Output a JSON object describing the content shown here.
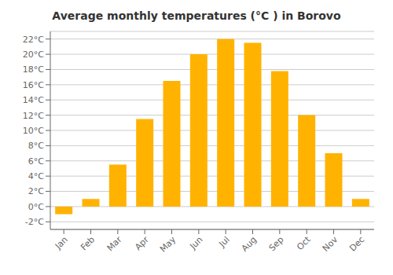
{
  "chart_data": {
    "type": "bar",
    "title": "Average monthly temperatures (°C ) in Borovo",
    "categories": [
      "Jan",
      "Feb",
      "Mar",
      "Apr",
      "May",
      "Jun",
      "Jul",
      "Aug",
      "Sep",
      "Oct",
      "Nov",
      "Dec"
    ],
    "values": [
      -1.0,
      1.0,
      5.5,
      11.5,
      16.5,
      20.0,
      22.0,
      21.5,
      17.8,
      12.0,
      7.0,
      1.0
    ],
    "color": "#FFB300",
    "ylim": [
      -3,
      23
    ],
    "yticks": [
      {
        "value": -2,
        "label": "-2°C"
      },
      {
        "value": 0,
        "label": "0°C"
      },
      {
        "value": 2,
        "label": "2°C"
      },
      {
        "value": 4,
        "label": "4°C"
      },
      {
        "value": 6,
        "label": "6°C"
      },
      {
        "value": 8,
        "label": "8°C"
      },
      {
        "value": 10,
        "label": "10°C"
      },
      {
        "value": 12,
        "label": "12°C"
      },
      {
        "value": 14,
        "label": "14°C"
      },
      {
        "value": 16,
        "label": "16°C"
      },
      {
        "value": 18,
        "label": "18°C"
      },
      {
        "value": 20,
        "label": "20°C"
      },
      {
        "value": 22,
        "label": "22°C"
      }
    ],
    "grid": true
  }
}
